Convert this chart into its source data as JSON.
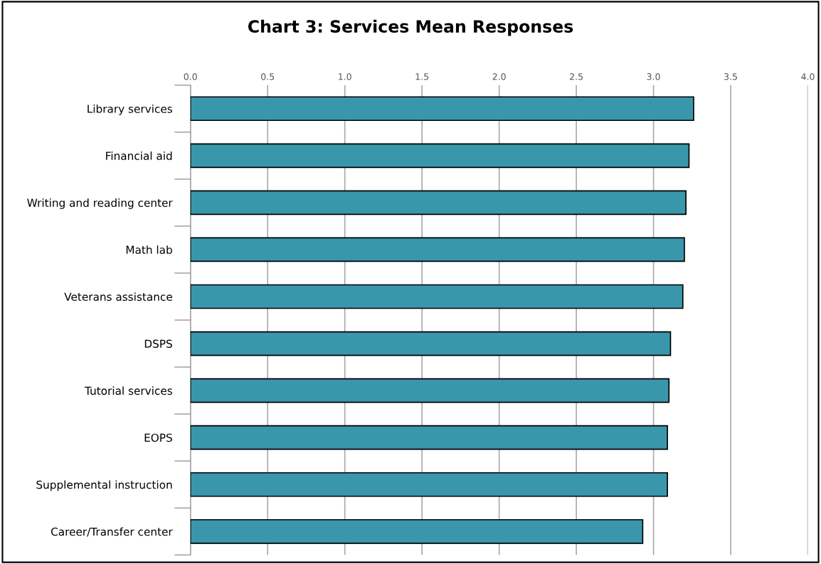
{
  "chart_data": {
    "type": "bar",
    "orientation": "horizontal",
    "title": "Chart 3: Services Mean Responses",
    "categories": [
      "Library services",
      "Financial aid",
      "Writing and reading center",
      "Math lab",
      "Veterans assistance",
      "DSPS",
      "Tutorial services",
      "EOPS",
      "Supplemental instruction",
      "Career/Transfer center"
    ],
    "values": [
      3.26,
      3.23,
      3.21,
      3.2,
      3.19,
      3.11,
      3.1,
      3.09,
      3.09,
      2.93
    ],
    "color": "#3a97ab",
    "xlim": [
      0,
      4
    ],
    "xticks": [
      {
        "value": 0,
        "label": "0.0"
      },
      {
        "value": 0.5,
        "label": "0.5"
      },
      {
        "value": 1,
        "label": "1.0"
      },
      {
        "value": 1.5,
        "label": "1.5"
      },
      {
        "value": 2,
        "label": "2.0"
      },
      {
        "value": 2.5,
        "label": "2.5"
      },
      {
        "value": 3,
        "label": "3.0"
      },
      {
        "value": 3.5,
        "label": "3.5"
      },
      {
        "value": 4,
        "label": "4.0"
      }
    ],
    "grid": "x",
    "legend": false
  }
}
